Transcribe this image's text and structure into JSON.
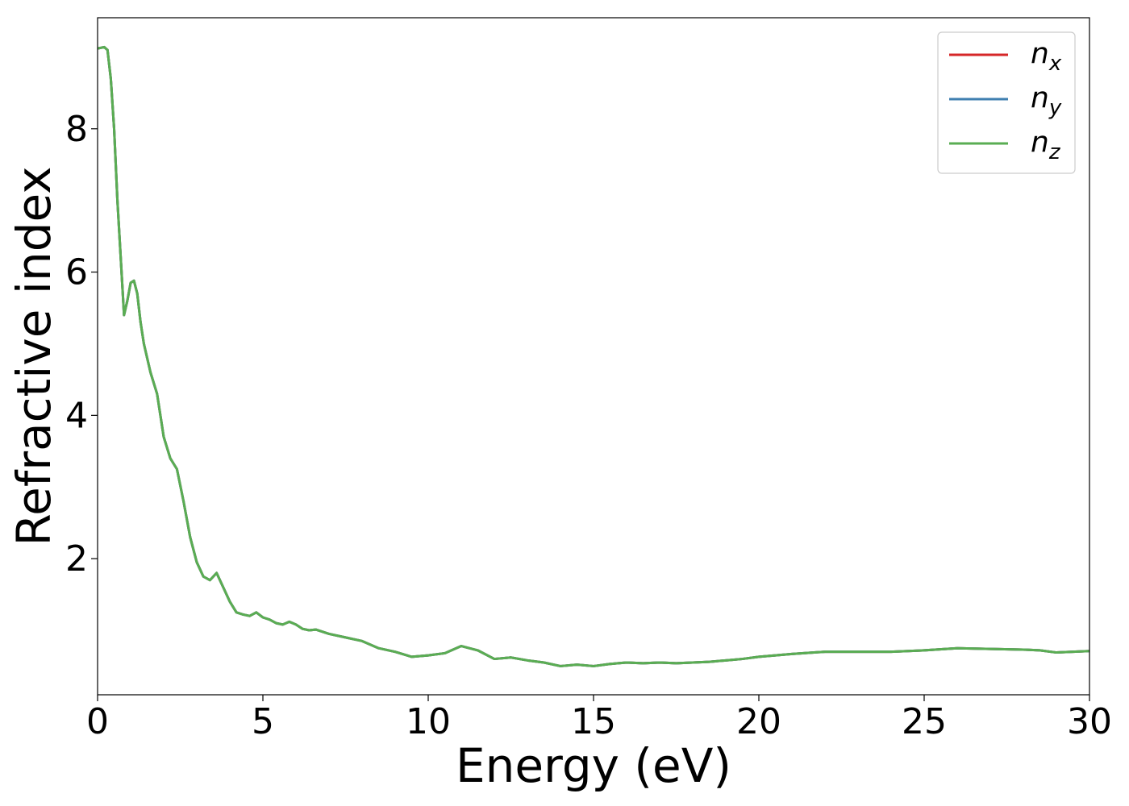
{
  "chart_data": {
    "type": "line",
    "title": "",
    "xlabel": "Energy (eV)",
    "ylabel": "Refractive index",
    "xlim": [
      0,
      30
    ],
    "ylim": [
      0.1,
      9.55
    ],
    "xticks": [
      0,
      5,
      10,
      15,
      20,
      25,
      30
    ],
    "yticks": [
      2,
      4,
      6,
      8
    ],
    "grid": false,
    "legend_position": "top-right",
    "series": [
      {
        "name": "n_x",
        "label_main": "n",
        "label_sub": "x",
        "color": "#d62728",
        "x": [
          0,
          0.1,
          0.2,
          0.3,
          0.4,
          0.5,
          0.6,
          0.7,
          0.8,
          0.9,
          1.0,
          1.1,
          1.2,
          1.3,
          1.4,
          1.6,
          1.8,
          2.0,
          2.2,
          2.4,
          2.6,
          2.8,
          3.0,
          3.2,
          3.4,
          3.6,
          3.8,
          4.0,
          4.2,
          4.4,
          4.6,
          4.8,
          5.0,
          5.2,
          5.4,
          5.6,
          5.8,
          6.0,
          6.2,
          6.4,
          6.6,
          7.0,
          7.5,
          8.0,
          8.5,
          9.0,
          9.5,
          10.0,
          10.5,
          11.0,
          11.5,
          12.0,
          12.5,
          13.0,
          13.5,
          14.0,
          14.5,
          15.0,
          15.5,
          16.0,
          16.5,
          17.0,
          17.5,
          18.0,
          18.5,
          19.0,
          19.5,
          20.0,
          21.0,
          22.0,
          23.0,
          24.0,
          25.0,
          26.0,
          27.0,
          28.0,
          28.5,
          29.0,
          29.5,
          30.0
        ],
        "y": [
          9.12,
          9.13,
          9.14,
          9.1,
          8.7,
          8.0,
          7.0,
          6.2,
          5.4,
          5.6,
          5.85,
          5.88,
          5.7,
          5.3,
          5.0,
          4.6,
          4.3,
          3.7,
          3.4,
          3.25,
          2.8,
          2.3,
          1.95,
          1.75,
          1.7,
          1.8,
          1.6,
          1.4,
          1.25,
          1.22,
          1.2,
          1.25,
          1.18,
          1.15,
          1.1,
          1.08,
          1.12,
          1.08,
          1.02,
          1.0,
          1.01,
          0.95,
          0.9,
          0.85,
          0.75,
          0.7,
          0.63,
          0.65,
          0.68,
          0.78,
          0.72,
          0.6,
          0.62,
          0.58,
          0.55,
          0.5,
          0.52,
          0.5,
          0.53,
          0.55,
          0.54,
          0.55,
          0.54,
          0.55,
          0.56,
          0.58,
          0.6,
          0.63,
          0.67,
          0.7,
          0.7,
          0.7,
          0.72,
          0.75,
          0.74,
          0.73,
          0.72,
          0.69,
          0.7,
          0.71
        ]
      },
      {
        "name": "n_y",
        "label_main": "n",
        "label_sub": "y",
        "color": "#3f7fb0",
        "x": [
          0,
          0.1,
          0.2,
          0.3,
          0.4,
          0.5,
          0.6,
          0.7,
          0.8,
          0.9,
          1.0,
          1.1,
          1.2,
          1.3,
          1.4,
          1.6,
          1.8,
          2.0,
          2.2,
          2.4,
          2.6,
          2.8,
          3.0,
          3.2,
          3.4,
          3.6,
          3.8,
          4.0,
          4.2,
          4.4,
          4.6,
          4.8,
          5.0,
          5.2,
          5.4,
          5.6,
          5.8,
          6.0,
          6.2,
          6.4,
          6.6,
          7.0,
          7.5,
          8.0,
          8.5,
          9.0,
          9.5,
          10.0,
          10.5,
          11.0,
          11.5,
          12.0,
          12.5,
          13.0,
          13.5,
          14.0,
          14.5,
          15.0,
          15.5,
          16.0,
          16.5,
          17.0,
          17.5,
          18.0,
          18.5,
          19.0,
          19.5,
          20.0,
          21.0,
          22.0,
          23.0,
          24.0,
          25.0,
          26.0,
          27.0,
          28.0,
          28.5,
          29.0,
          29.5,
          30.0
        ],
        "y": [
          9.12,
          9.13,
          9.14,
          9.1,
          8.7,
          8.0,
          7.0,
          6.2,
          5.4,
          5.6,
          5.85,
          5.88,
          5.7,
          5.3,
          5.0,
          4.6,
          4.3,
          3.7,
          3.4,
          3.25,
          2.8,
          2.3,
          1.95,
          1.75,
          1.7,
          1.8,
          1.6,
          1.4,
          1.25,
          1.22,
          1.2,
          1.25,
          1.18,
          1.15,
          1.1,
          1.08,
          1.12,
          1.08,
          1.02,
          1.0,
          1.01,
          0.95,
          0.9,
          0.85,
          0.75,
          0.7,
          0.63,
          0.65,
          0.68,
          0.78,
          0.72,
          0.6,
          0.62,
          0.58,
          0.55,
          0.5,
          0.52,
          0.5,
          0.53,
          0.55,
          0.54,
          0.55,
          0.54,
          0.55,
          0.56,
          0.58,
          0.6,
          0.63,
          0.67,
          0.7,
          0.7,
          0.7,
          0.72,
          0.75,
          0.74,
          0.73,
          0.72,
          0.69,
          0.7,
          0.71
        ]
      },
      {
        "name": "n_z",
        "label_main": "n",
        "label_sub": "z",
        "color": "#5aad53",
        "x": [
          0,
          0.1,
          0.2,
          0.3,
          0.4,
          0.5,
          0.6,
          0.7,
          0.8,
          0.9,
          1.0,
          1.1,
          1.2,
          1.3,
          1.4,
          1.6,
          1.8,
          2.0,
          2.2,
          2.4,
          2.6,
          2.8,
          3.0,
          3.2,
          3.4,
          3.6,
          3.8,
          4.0,
          4.2,
          4.4,
          4.6,
          4.8,
          5.0,
          5.2,
          5.4,
          5.6,
          5.8,
          6.0,
          6.2,
          6.4,
          6.6,
          7.0,
          7.5,
          8.0,
          8.5,
          9.0,
          9.5,
          10.0,
          10.5,
          11.0,
          11.5,
          12.0,
          12.5,
          13.0,
          13.5,
          14.0,
          14.5,
          15.0,
          15.5,
          16.0,
          16.5,
          17.0,
          17.5,
          18.0,
          18.5,
          19.0,
          19.5,
          20.0,
          21.0,
          22.0,
          23.0,
          24.0,
          25.0,
          26.0,
          27.0,
          28.0,
          28.5,
          29.0,
          29.5,
          30.0
        ],
        "y": [
          9.12,
          9.13,
          9.14,
          9.1,
          8.7,
          8.0,
          7.0,
          6.2,
          5.4,
          5.6,
          5.85,
          5.88,
          5.7,
          5.3,
          5.0,
          4.6,
          4.3,
          3.7,
          3.4,
          3.25,
          2.8,
          2.3,
          1.95,
          1.75,
          1.7,
          1.8,
          1.6,
          1.4,
          1.25,
          1.22,
          1.2,
          1.25,
          1.18,
          1.15,
          1.1,
          1.08,
          1.12,
          1.08,
          1.02,
          1.0,
          1.01,
          0.95,
          0.9,
          0.85,
          0.75,
          0.7,
          0.63,
          0.65,
          0.68,
          0.78,
          0.72,
          0.6,
          0.62,
          0.58,
          0.55,
          0.5,
          0.52,
          0.5,
          0.53,
          0.55,
          0.54,
          0.55,
          0.54,
          0.55,
          0.56,
          0.58,
          0.6,
          0.63,
          0.67,
          0.7,
          0.7,
          0.7,
          0.72,
          0.75,
          0.74,
          0.73,
          0.72,
          0.69,
          0.7,
          0.71
        ]
      }
    ]
  }
}
